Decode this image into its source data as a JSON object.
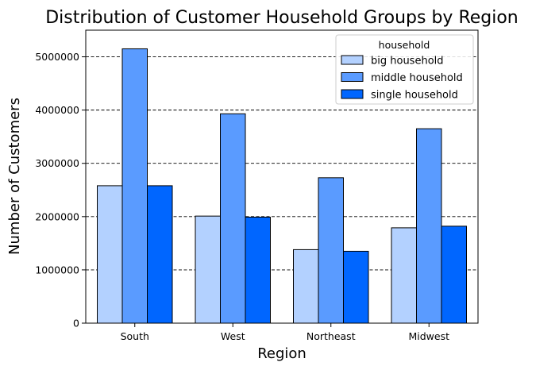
{
  "chart_data": {
    "type": "bar",
    "title": "Distribution of Customer Household Groups by Region",
    "xlabel": "Region",
    "ylabel": "Number of Customers",
    "categories": [
      "South",
      "West",
      "Northeast",
      "Midwest"
    ],
    "series": [
      {
        "name": "big household",
        "color": "#b3d1ff",
        "values": [
          2580000,
          2010000,
          1380000,
          1790000
        ]
      },
      {
        "name": "middle household",
        "color": "#5a9bff",
        "values": [
          5150000,
          3930000,
          2730000,
          3650000
        ]
      },
      {
        "name": "single household",
        "color": "#0066ff",
        "values": [
          2580000,
          1990000,
          1350000,
          1820000
        ]
      }
    ],
    "ylim": [
      0,
      5500000
    ],
    "yticks": [
      0,
      1000000,
      2000000,
      3000000,
      4000000,
      5000000
    ],
    "ytick_labels": [
      "0",
      "1000000",
      "2000000",
      "3000000",
      "4000000",
      "5000000"
    ],
    "grid": "y-dashed",
    "legend": {
      "title": "household",
      "placement": "top-right"
    }
  }
}
